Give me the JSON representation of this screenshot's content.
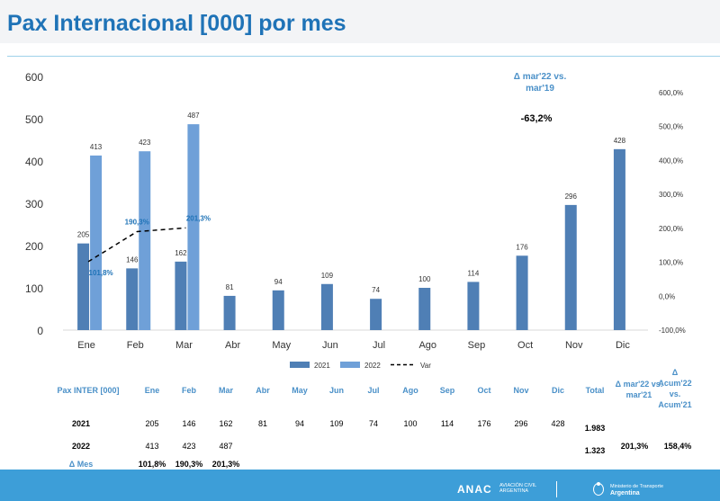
{
  "title": "Pax Internacional [000] por mes",
  "colors": {
    "series_2021": "#4f7fb5",
    "series_2022": "#6fa0d8",
    "var_line": "#000000",
    "header_blue": "#1f73b7",
    "table_header": "#4a90c8",
    "footer": "#3d9ed8"
  },
  "chart_data": {
    "type": "bar",
    "title": "",
    "categories": [
      "Ene",
      "Feb",
      "Mar",
      "Abr",
      "May",
      "Jun",
      "Jul",
      "Ago",
      "Sep",
      "Oct",
      "Nov",
      "Dic"
    ],
    "series": [
      {
        "name": "2021",
        "values": [
          205,
          146,
          162,
          81,
          94,
          109,
          74,
          100,
          114,
          176,
          296,
          428
        ]
      },
      {
        "name": "2022",
        "values": [
          413,
          423,
          487,
          null,
          null,
          null,
          null,
          null,
          null,
          null,
          null,
          null
        ]
      }
    ],
    "line_series": {
      "name": "Var",
      "axis": "secondary",
      "values": [
        101.8,
        190.3,
        201.3
      ],
      "labels": [
        "101,8%",
        "190,3%",
        "201,3%"
      ],
      "style": "dashed"
    },
    "ylim": [
      0,
      600
    ],
    "yticks": [
      "0",
      "100",
      "200",
      "300",
      "400",
      "500",
      "600"
    ],
    "y2lim": [
      -100,
      600
    ],
    "y2ticks": [
      "-100,0%",
      "0,0%",
      "100,0%",
      "200,0%",
      "300,0%",
      "400,0%",
      "500,0%",
      "600,0%"
    ],
    "legend_position": "bottom",
    "annotation": {
      "label": "Δ mar'22 vs. mar'19",
      "value": "-63,2%"
    }
  },
  "table": {
    "header": [
      "Pax INTER [000]",
      "Ene",
      "Feb",
      "Mar",
      "Abr",
      "May",
      "Jun",
      "Jul",
      "Ago",
      "Sep",
      "Oct",
      "Nov",
      "Dic",
      "Total"
    ],
    "rows": [
      {
        "label": "2021",
        "values": [
          "205",
          "146",
          "162",
          "81",
          "94",
          "109",
          "74",
          "100",
          "114",
          "176",
          "296",
          "428"
        ],
        "total": "1.983"
      },
      {
        "label": "2022",
        "values": [
          "413",
          "423",
          "487"
        ],
        "total": "1.323"
      },
      {
        "label": "Δ Mes",
        "values": [
          "101,8%",
          "190,3%",
          "201,3%"
        ]
      }
    ],
    "delta_yoy_header": "Δ mar'22 vs. mar'21",
    "delta_yoy_value": "201,3%",
    "delta_acum_header": "Δ Acum'22 vs. Acum'21",
    "delta_acum_value": "158,4%"
  },
  "footer": {
    "logo": "ANAC",
    "logo_sub": "AVIACIÓN CIVIL ARGENTINA",
    "ministry_line1": "Ministerio de Transporte",
    "ministry_line2": "Argentina"
  }
}
